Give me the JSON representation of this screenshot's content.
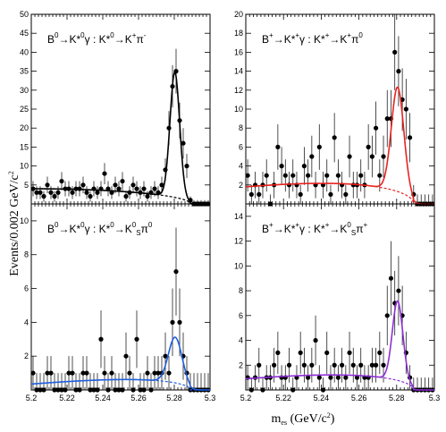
{
  "figure": {
    "ylabel": "Events/0.002 GeV/c",
    "ylabel_sup": "2",
    "xlabel": "m",
    "xlabel_sub": "es",
    "xlabel_unit": " (GeV/c",
    "xlabel_unit_sup": "2",
    "xlabel_close": ")"
  },
  "chart_data": [
    {
      "type": "scatter",
      "panel": "top-left",
      "title_parts": [
        [
          "B",
          "n"
        ],
        [
          "0",
          "sup"
        ],
        [
          "→K*",
          "n"
        ],
        [
          "0",
          "sup"
        ],
        [
          "γ : K*",
          "n"
        ],
        [
          "0",
          "sup"
        ],
        [
          "→K",
          "n"
        ],
        [
          "+",
          "sup"
        ],
        [
          "π",
          "n"
        ],
        [
          "-",
          "sup"
        ]
      ],
      "xlim": [
        5.2,
        5.3
      ],
      "ylim": [
        0,
        50
      ],
      "yticks": [
        5,
        10,
        15,
        20,
        25,
        30,
        35,
        40,
        45,
        50
      ],
      "curve_color": "#000000",
      "curve": {
        "signal_amp": 33,
        "mean": 5.2803,
        "sigma": 0.0027,
        "bkg_level": 4,
        "rise": 0
      },
      "x": [
        5.201,
        5.203,
        5.205,
        5.207,
        5.209,
        5.211,
        5.213,
        5.215,
        5.217,
        5.219,
        5.221,
        5.223,
        5.225,
        5.227,
        5.229,
        5.231,
        5.233,
        5.235,
        5.237,
        5.239,
        5.241,
        5.243,
        5.245,
        5.247,
        5.249,
        5.251,
        5.253,
        5.255,
        5.257,
        5.259,
        5.261,
        5.263,
        5.265,
        5.267,
        5.269,
        5.271,
        5.273,
        5.275,
        5.277,
        5.279,
        5.281,
        5.283,
        5.285,
        5.287,
        5.289,
        5.291,
        5.293,
        5.295,
        5.297,
        5.299
      ],
      "y": [
        4,
        3,
        3,
        2,
        5,
        3,
        2,
        3,
        6,
        4,
        4,
        3,
        4,
        4,
        5,
        3,
        2,
        4,
        3,
        4,
        8,
        4,
        3,
        5,
        4,
        6,
        2,
        3,
        5,
        4,
        3,
        4,
        2,
        3,
        4,
        3,
        5,
        9,
        20,
        31,
        35,
        22,
        16,
        10,
        1,
        0,
        0,
        0,
        0,
        0
      ],
      "err": [
        2,
        1.7,
        1.7,
        1.4,
        2.2,
        1.7,
        1.4,
        1.7,
        2.4,
        2,
        2,
        1.7,
        2,
        2,
        2.2,
        1.7,
        1.4,
        2,
        1.7,
        2,
        2.8,
        2,
        1.7,
        2.2,
        2,
        2.4,
        1.4,
        1.7,
        2.2,
        2,
        1.7,
        2,
        1.4,
        1.7,
        2,
        1.7,
        2.2,
        3,
        4.5,
        5.6,
        5.9,
        4.7,
        4,
        3.2,
        1,
        1,
        1,
        1,
        1,
        1
      ]
    },
    {
      "type": "scatter",
      "panel": "top-right",
      "title_parts": [
        [
          "B",
          "n"
        ],
        [
          "+",
          "sup"
        ],
        [
          "→K*",
          "n"
        ],
        [
          "+",
          "sup"
        ],
        [
          "γ : K*",
          "n"
        ],
        [
          "+",
          "sup"
        ],
        [
          "→K",
          "n"
        ],
        [
          "+",
          "sup"
        ],
        [
          "π",
          "n"
        ],
        [
          "0",
          "sup"
        ]
      ],
      "xlim": [
        5.2,
        5.3
      ],
      "ylim": [
        0,
        20
      ],
      "yticks": [
        2,
        4,
        6,
        8,
        10,
        12,
        14,
        16,
        18,
        20
      ],
      "curve_color": "#e8231f",
      "curve": {
        "signal_amp": 11,
        "mean": 5.2805,
        "sigma": 0.0033,
        "bkg_level": 1.8,
        "rise": 1.4
      },
      "x": [
        5.201,
        5.203,
        5.205,
        5.207,
        5.209,
        5.211,
        5.213,
        5.215,
        5.217,
        5.219,
        5.221,
        5.223,
        5.225,
        5.227,
        5.229,
        5.231,
        5.233,
        5.235,
        5.237,
        5.239,
        5.241,
        5.243,
        5.245,
        5.247,
        5.249,
        5.251,
        5.253,
        5.255,
        5.257,
        5.259,
        5.261,
        5.263,
        5.265,
        5.267,
        5.269,
        5.271,
        5.273,
        5.275,
        5.277,
        5.279,
        5.281,
        5.283,
        5.285,
        5.287,
        5.289,
        5.291,
        5.293,
        5.295,
        5.297,
        5.299
      ],
      "y": [
        3,
        1,
        2,
        1,
        2,
        3,
        0,
        2,
        6,
        4,
        3,
        2,
        3,
        2,
        1,
        4,
        3,
        5,
        2,
        6,
        2,
        3,
        1,
        7,
        3,
        2,
        1,
        5,
        2,
        2,
        3,
        2,
        6,
        5,
        8,
        3,
        5,
        9,
        9,
        16,
        14,
        11,
        10,
        7,
        1,
        0,
        0,
        0,
        0,
        0
      ],
      "err": [
        1.7,
        1,
        1.4,
        1,
        1.4,
        1.7,
        1,
        1.4,
        2.4,
        2,
        1.7,
        1.4,
        1.7,
        1.4,
        1,
        2,
        1.7,
        2.2,
        1.4,
        2.4,
        1.4,
        1.7,
        1,
        2.6,
        1.7,
        1.4,
        1,
        2.2,
        1.4,
        1.4,
        1.7,
        1.4,
        2.4,
        2.2,
        2.8,
        1.7,
        2.2,
        3,
        3,
        4,
        3.7,
        3.3,
        3.2,
        2.6,
        1,
        1,
        1,
        1,
        1,
        1
      ]
    },
    {
      "type": "scatter",
      "panel": "bottom-left",
      "title_parts": [
        [
          "B",
          "n"
        ],
        [
          "0",
          "sup"
        ],
        [
          "→K*",
          "n"
        ],
        [
          "0",
          "sup"
        ],
        [
          "γ : K*",
          "n"
        ],
        [
          "0",
          "sup"
        ],
        [
          "→K",
          "n"
        ],
        [
          "0",
          "sup"
        ],
        [
          "S",
          "sub"
        ],
        [
          "π",
          "n"
        ],
        [
          "0",
          "sup"
        ]
      ],
      "xlim": [
        5.2,
        5.3
      ],
      "ylim": [
        0,
        11
      ],
      "yticks": [
        2,
        4,
        6,
        8,
        10
      ],
      "xticks": [
        "5.2",
        "5.22",
        "5.24",
        "5.26",
        "5.28",
        "5.3"
      ],
      "curve_color": "#1f5fe0",
      "curve": {
        "signal_amp": 2.7,
        "mean": 5.2805,
        "sigma": 0.0038,
        "bkg_level": 0.35,
        "rise": 0.7
      },
      "x": [
        5.201,
        5.203,
        5.205,
        5.207,
        5.209,
        5.211,
        5.213,
        5.215,
        5.217,
        5.219,
        5.221,
        5.223,
        5.225,
        5.227,
        5.229,
        5.231,
        5.233,
        5.235,
        5.237,
        5.239,
        5.241,
        5.243,
        5.245,
        5.247,
        5.249,
        5.251,
        5.253,
        5.255,
        5.257,
        5.259,
        5.261,
        5.263,
        5.265,
        5.267,
        5.269,
        5.271,
        5.273,
        5.275,
        5.277,
        5.279,
        5.281,
        5.283,
        5.285,
        5.287,
        5.289,
        5.291,
        5.293,
        5.295,
        5.297,
        5.299
      ],
      "y": [
        1,
        0,
        0,
        0,
        1,
        1,
        0,
        0,
        0,
        0,
        1,
        1,
        0,
        0,
        1,
        1,
        0,
        0,
        0,
        3,
        1,
        0,
        1,
        0,
        0,
        0,
        2,
        1,
        0,
        3,
        0,
        0,
        1,
        0,
        1,
        1,
        1,
        2,
        1,
        4,
        7,
        4,
        2,
        1,
        0,
        0,
        0,
        0,
        0,
        0
      ],
      "err": [
        1,
        1,
        1,
        1,
        1,
        1,
        1,
        1,
        1,
        1,
        1,
        1,
        1,
        1,
        1,
        1,
        1,
        1,
        1,
        1.7,
        1,
        1,
        1,
        1,
        1,
        1,
        1.4,
        1,
        1,
        1.7,
        1,
        1,
        1,
        1,
        1,
        1,
        1,
        1.4,
        1,
        2,
        2.6,
        2,
        1.4,
        1,
        1,
        1,
        1,
        1,
        1,
        1
      ]
    },
    {
      "type": "scatter",
      "panel": "bottom-right",
      "title_parts": [
        [
          "B",
          "n"
        ],
        [
          "+",
          "sup"
        ],
        [
          "→K*",
          "n"
        ],
        [
          "+",
          "sup"
        ],
        [
          "γ : K*",
          "n"
        ],
        [
          "+",
          "sup"
        ],
        [
          "→K",
          "n"
        ],
        [
          "0",
          "sup"
        ],
        [
          "S",
          "sub"
        ],
        [
          "π",
          "n"
        ],
        [
          "+",
          "sup"
        ]
      ],
      "xlim": [
        5.2,
        5.3
      ],
      "ylim": [
        0,
        15
      ],
      "yticks": [
        2,
        4,
        6,
        8,
        10,
        12,
        14
      ],
      "xticks": [
        "5.2",
        "5.22",
        "5.24",
        "5.26",
        "5.28",
        "5.3"
      ],
      "curve_color": "#8e2fd6",
      "curve": {
        "signal_amp": 6.4,
        "mean": 5.2805,
        "sigma": 0.0028,
        "bkg_level": 0.9,
        "rise": 1.0
      },
      "x": [
        5.201,
        5.203,
        5.205,
        5.207,
        5.209,
        5.211,
        5.213,
        5.215,
        5.217,
        5.219,
        5.221,
        5.223,
        5.225,
        5.227,
        5.229,
        5.231,
        5.233,
        5.235,
        5.237,
        5.239,
        5.241,
        5.243,
        5.245,
        5.247,
        5.249,
        5.251,
        5.253,
        5.255,
        5.257,
        5.259,
        5.261,
        5.263,
        5.265,
        5.267,
        5.269,
        5.271,
        5.273,
        5.275,
        5.277,
        5.279,
        5.281,
        5.283,
        5.285,
        5.287,
        5.289,
        5.291,
        5.293,
        5.295,
        5.297,
        5.299
      ],
      "y": [
        1,
        0,
        1,
        2,
        0,
        1,
        1,
        2,
        3,
        1,
        1,
        2,
        0,
        1,
        3,
        2,
        1,
        2,
        4,
        1,
        0,
        3,
        1,
        2,
        1,
        2,
        1,
        3,
        2,
        1,
        2,
        1,
        1,
        2,
        2,
        3,
        2,
        6,
        9,
        7,
        8,
        6,
        3,
        1,
        0,
        0,
        0,
        0,
        0,
        0
      ],
      "err": [
        1,
        1,
        1,
        1.4,
        1,
        1,
        1,
        1.4,
        1.7,
        1,
        1,
        1.4,
        1,
        1,
        1.7,
        1.4,
        1,
        1.4,
        2,
        1,
        1,
        1.7,
        1,
        1.4,
        1,
        1.4,
        1,
        1.7,
        1.4,
        1,
        1.4,
        1,
        1,
        1.4,
        1.4,
        1.7,
        1.4,
        2.4,
        3,
        2.6,
        2.8,
        2.4,
        1.7,
        1,
        1,
        1,
        1,
        1,
        1,
        1
      ]
    }
  ]
}
